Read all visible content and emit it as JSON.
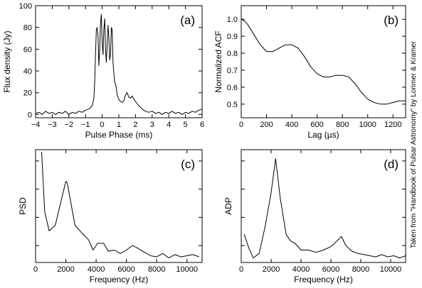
{
  "credit": "Taken from \"Handbook of Pulsar Astronomy\" by Lorimer & Kramer",
  "chart_data": [
    {
      "id": "a",
      "type": "line",
      "panel_label": "(a)",
      "xlabel": "Pulse Phase (ms)",
      "ylabel": "Flux density (Jy)",
      "xlim": [
        -4,
        6
      ],
      "ylim": [
        -3,
        100
      ],
      "xticks": [
        -4,
        -3,
        -2,
        -1,
        0,
        1,
        2,
        3,
        4,
        5,
        6
      ],
      "yticks": [
        0,
        20,
        40,
        60,
        80,
        100
      ],
      "yticks_labeled": true,
      "series": [
        {
          "x": [
            -4.0,
            -3.8,
            -3.6,
            -3.4,
            -3.2,
            -3.0,
            -2.8,
            -2.6,
            -2.4,
            -2.2,
            -2.0,
            -1.8,
            -1.6,
            -1.4,
            -1.2,
            -1.0,
            -0.8,
            -0.6,
            -0.5,
            -0.45,
            -0.4,
            -0.35,
            -0.3,
            -0.25,
            -0.2,
            -0.15,
            -0.1,
            -0.05,
            0.0,
            0.05,
            0.1,
            0.15,
            0.2,
            0.25,
            0.3,
            0.35,
            0.4,
            0.45,
            0.5,
            0.55,
            0.6,
            0.65,
            0.7,
            0.75,
            0.8,
            0.85,
            0.9,
            1.0,
            1.1,
            1.2,
            1.3,
            1.4,
            1.5,
            1.6,
            1.7,
            1.8,
            1.9,
            2.0,
            2.2,
            2.4,
            2.6,
            2.8,
            3.0,
            3.2,
            3.4,
            3.6,
            3.8,
            4.0,
            4.2,
            4.4,
            4.6,
            4.8,
            5.0,
            5.2,
            5.4,
            5.6,
            5.8,
            6.0
          ],
          "y": [
            1,
            2,
            0,
            3,
            1,
            2,
            0,
            2,
            1,
            3,
            0,
            2,
            1,
            3,
            2,
            4,
            5,
            8,
            15,
            30,
            55,
            78,
            80,
            72,
            45,
            60,
            85,
            92,
            65,
            55,
            78,
            88,
            60,
            48,
            65,
            82,
            70,
            50,
            55,
            80,
            78,
            48,
            38,
            30,
            28,
            24,
            18,
            14,
            12,
            11,
            13,
            18,
            20,
            16,
            15,
            17,
            14,
            12,
            8,
            5,
            3,
            2,
            3,
            1,
            2,
            0,
            2,
            1,
            3,
            1,
            2,
            0,
            2,
            1,
            3,
            2,
            4,
            5
          ]
        }
      ]
    },
    {
      "id": "b",
      "type": "line",
      "panel_label": "(b)",
      "xlabel": "Lag (µs)",
      "ylabel": "Normalized ACF",
      "xlim": [
        0,
        1300
      ],
      "ylim": [
        0.42,
        1.08
      ],
      "xticks": [
        0,
        200,
        400,
        600,
        800,
        1000,
        1200
      ],
      "yticks": [
        0.5,
        0.6,
        0.7,
        0.8,
        0.9,
        1.0
      ],
      "yticks_labeled": true,
      "series": [
        {
          "x": [
            0,
            25,
            50,
            100,
            150,
            200,
            250,
            300,
            350,
            400,
            450,
            500,
            550,
            600,
            650,
            700,
            750,
            800,
            850,
            900,
            950,
            1000,
            1050,
            1100,
            1150,
            1200,
            1250,
            1300
          ],
          "y": [
            1.0,
            0.99,
            0.97,
            0.91,
            0.85,
            0.81,
            0.81,
            0.83,
            0.85,
            0.85,
            0.83,
            0.78,
            0.72,
            0.68,
            0.66,
            0.66,
            0.67,
            0.67,
            0.66,
            0.62,
            0.57,
            0.53,
            0.51,
            0.5,
            0.5,
            0.51,
            0.52,
            0.52
          ]
        }
      ]
    },
    {
      "id": "c",
      "type": "line",
      "panel_label": "(c)",
      "xlabel": "Frequency (Hz)",
      "ylabel": "PSD",
      "xlim": [
        0,
        11000
      ],
      "ylim": [
        0,
        100
      ],
      "xticks": [
        0,
        2000,
        4000,
        6000,
        8000,
        10000
      ],
      "yticks": [
        15,
        40,
        65,
        90
      ],
      "yticks_labeled": false,
      "series": [
        {
          "x": [
            400,
            600,
            900,
            1300,
            2000,
            2100,
            2600,
            3000,
            3500,
            3800,
            4100,
            4500,
            4800,
            5200,
            5600,
            6000,
            6400,
            6700,
            7200,
            7600,
            8000,
            8400,
            8800,
            9200,
            9600,
            10000,
            10400,
            10800
          ],
          "y": [
            98,
            45,
            28,
            33,
            72,
            70,
            33,
            27,
            20,
            11,
            17,
            17,
            10,
            11,
            8,
            11,
            15,
            13,
            9,
            6,
            5,
            8,
            4,
            7,
            5,
            6,
            7,
            5
          ]
        }
      ]
    },
    {
      "id": "d",
      "type": "line",
      "panel_label": "(d)",
      "xlabel": "Frequency (Hz)",
      "ylabel": "ADP",
      "xlim": [
        0,
        11000
      ],
      "ylim": [
        0,
        100
      ],
      "xticks": [
        0,
        2000,
        4000,
        6000,
        8000,
        10000
      ],
      "yticks": [
        15,
        40,
        65,
        90
      ],
      "yticks_labeled": false,
      "series": [
        {
          "x": [
            200,
            500,
            800,
            1200,
            1600,
            2000,
            2300,
            2600,
            3000,
            3300,
            3600,
            4000,
            4500,
            5000,
            5500,
            6000,
            6400,
            6700,
            7000,
            7400,
            7800,
            8200,
            8600,
            9000,
            9400,
            9800,
            10200,
            10600,
            11000
          ],
          "y": [
            25,
            13,
            4,
            8,
            32,
            62,
            92,
            58,
            25,
            19,
            17,
            11,
            11,
            9,
            11,
            14,
            19,
            23,
            15,
            10,
            8,
            7,
            6,
            5,
            7,
            5,
            6,
            4,
            6
          ]
        }
      ]
    }
  ]
}
